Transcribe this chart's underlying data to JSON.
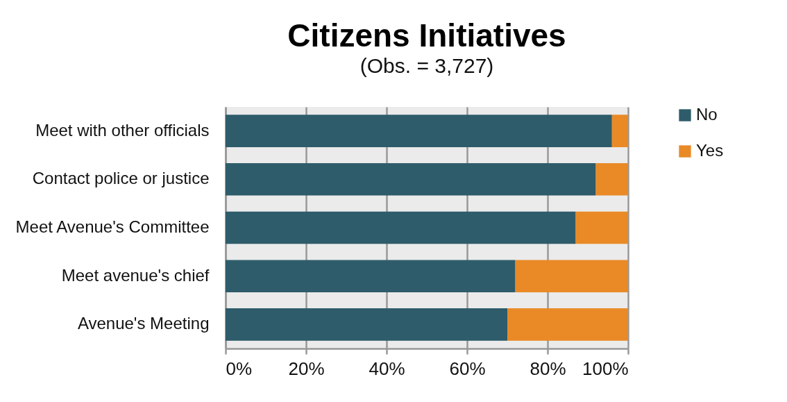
{
  "chart_data": {
    "type": "bar",
    "orientation": "horizontal",
    "stacked": true,
    "title": "Citizens Initiatives",
    "subtitle": "(Obs. = 3,727)",
    "categories": [
      "Meet with other officials",
      "Contact police or justice",
      "Meet Avenue's Committee",
      "Meet avenue's chief",
      "Avenue's Meeting"
    ],
    "series": [
      {
        "name": "No",
        "color": "#2e5c6b",
        "values": [
          96,
          92,
          87,
          72,
          70
        ]
      },
      {
        "name": "Yes",
        "color": "#e98a27",
        "values": [
          4,
          8,
          13,
          28,
          30
        ]
      }
    ],
    "xlim": [
      0,
      100
    ],
    "xticks": [
      {
        "value": 0,
        "label": "0%"
      },
      {
        "value": 20,
        "label": "20%"
      },
      {
        "value": 40,
        "label": "40%"
      },
      {
        "value": 60,
        "label": "60%"
      },
      {
        "value": 80,
        "label": "80%"
      },
      {
        "value": 100,
        "label": "100%"
      }
    ],
    "grid": "x",
    "legend": "right"
  }
}
